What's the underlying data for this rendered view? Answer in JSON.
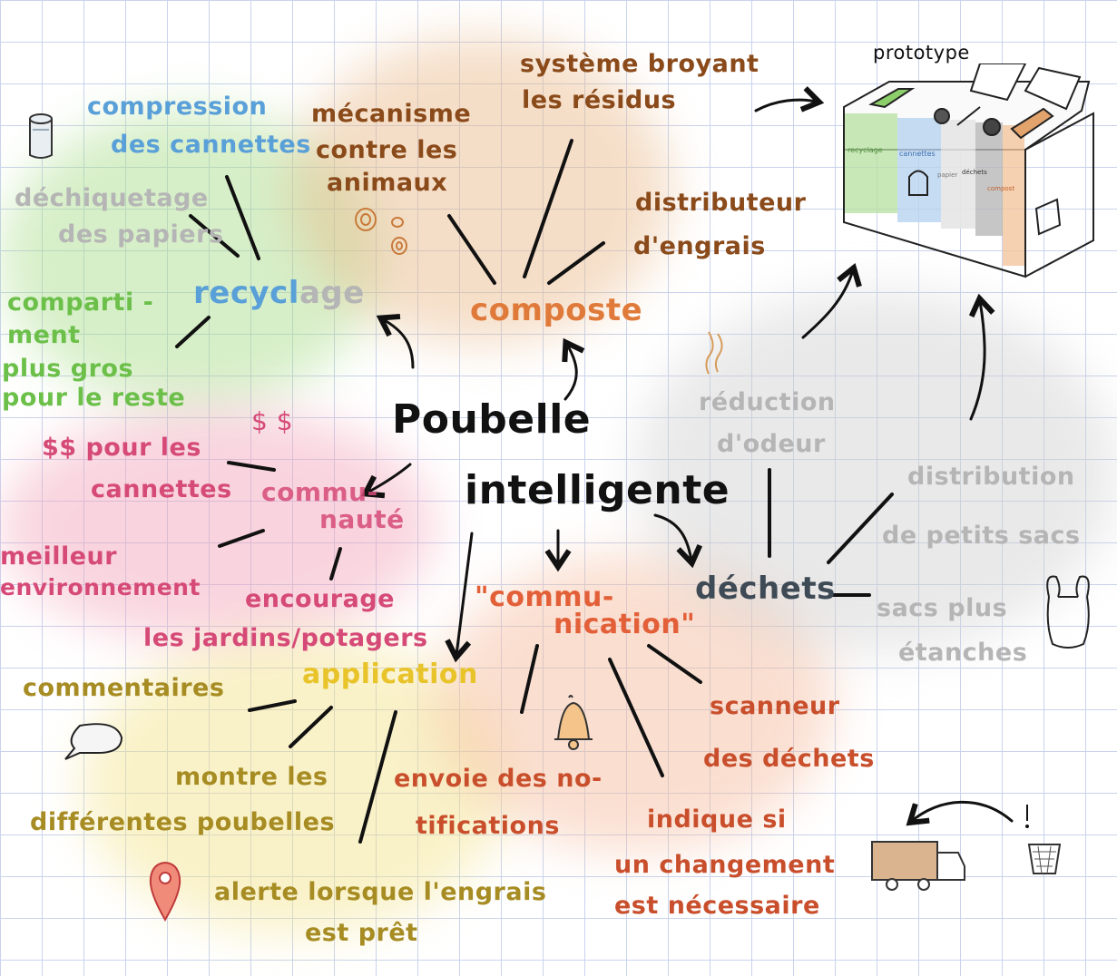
{
  "colors": {
    "recyclage": "#5aa0d8",
    "compost": "#e07a3a",
    "communaute": "#d64a78",
    "application": "#e8c32a",
    "communication": "#e35f38",
    "dechets": "#3e4a55",
    "grey": "#b5b5b5"
  },
  "center": {
    "line1": "Poubelle",
    "line2": "intelligente"
  },
  "recyclage": {
    "title_part1": "recycl",
    "title_part2": "age",
    "items": {
      "compression_l1": "compression",
      "compression_l2": "des cannettes",
      "dechiquetage_l1": "déchiquetage",
      "dechiquetage_l2": "des papiers",
      "compartiment_l1": "comparti -",
      "compartiment_l2": "ment",
      "compartiment_l3": "plus gros",
      "compartiment_l4": "pour le reste"
    }
  },
  "compost": {
    "title": "composte",
    "items": {
      "mecanisme_l1": "mécanisme",
      "mecanisme_l2": "contre les",
      "mecanisme_l3": "animaux",
      "systeme_l1": "système broyant",
      "systeme_l2": "les résidus",
      "distributeur_l1": "distributeur",
      "distributeur_l2": "d'engrais"
    }
  },
  "communaute": {
    "title_l1": "commu-",
    "title_l2": "nauté",
    "dollar_sign": "$ $",
    "items": {
      "argent_l1": "$$ pour les",
      "argent_l2": "cannettes",
      "environnement_l1": "meilleur",
      "environnement_l2": "environnement",
      "jardins_l1": "encourage",
      "jardins_l2": "les jardins/potagers"
    }
  },
  "application": {
    "title": "application",
    "items": {
      "commentaires": "commentaires",
      "montre_l1": "montre les",
      "montre_l2": "différentes poubelles",
      "alerte_l1": "alerte lorsque l'engrais",
      "alerte_l2": "est prêt"
    }
  },
  "communication": {
    "title_l1": "\"commu-",
    "title_l2": "nication\"",
    "items": {
      "notifications_l1": "envoie des no-",
      "notifications_l2": "tifications",
      "indique_l1": "indique si",
      "indique_l2": "un changement",
      "indique_l3": "est nécessaire",
      "scanneur_l1": "scanneur",
      "scanneur_l2": "des déchets"
    }
  },
  "dechets": {
    "title": "déchets",
    "items": {
      "odeur_l1": "réduction",
      "odeur_l2": "d'odeur",
      "sacs_l1": "distribution",
      "sacs_l2": "de petits sacs",
      "etanches_l1": "sacs plus",
      "etanches_l2": "étanches"
    }
  },
  "prototype": {
    "title": "prototype",
    "labels": [
      "recyclage",
      "cannettes",
      "papier",
      "déchets",
      "compost"
    ]
  },
  "icons": [
    "can-icon",
    "seeds-icon",
    "odor-icon",
    "bag-icon",
    "speech-bubble-icon",
    "bell-icon",
    "location-pin-icon",
    "truck-icon",
    "trash-basket-icon",
    "exclamation-icon",
    "prototype-bin-icon"
  ]
}
